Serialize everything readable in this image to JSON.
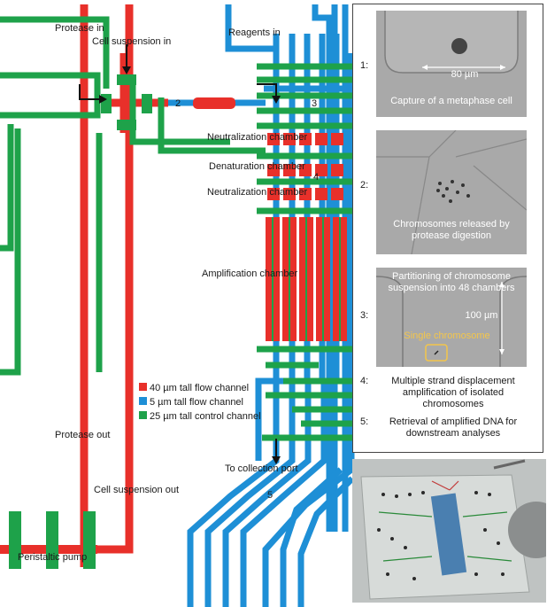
{
  "labels": {
    "protease_in": "Protease in",
    "cell_suspension_in": "Cell suspension in",
    "reagents_in": "Reagents in",
    "neutralization_1": "Neutralization chamber",
    "denaturation": "Denaturation chamber",
    "neutralization_2": "Neutralization chamber",
    "amplification": "Amplification chamber",
    "protease_out": "Protease out",
    "cell_suspension_out": "Cell suspension out",
    "to_collection_port": "To collection port",
    "peristaltic_pump": "Peristaltic pump",
    "marker_2": "2",
    "marker_3": "3",
    "marker_4": "4",
    "marker_5": "5"
  },
  "legend": [
    {
      "color": "#e8302a",
      "text": "40 µm tall flow channel"
    },
    {
      "color": "#1e8fd6",
      "text": "5 µm tall flow channel"
    },
    {
      "color": "#1ea24a",
      "text": "25 µm tall control channel"
    }
  ],
  "colors": {
    "flow40": "#e8302a",
    "flow5": "#1e8fd6",
    "control": "#1ea24a"
  },
  "steps": [
    {
      "num": "1:",
      "caption": "Capture of a metaphase cell",
      "scale": "80 µm"
    },
    {
      "num": "2:",
      "caption": "Chromosomes released by protease digestion"
    },
    {
      "num": "3:",
      "caption": "Partitioning of chromosome suspension into 48 chambers",
      "scale": "100 µm",
      "highlight": "Single chromosome"
    },
    {
      "num": "4:",
      "text": "Multiple strand displacement amplification of isolated chromosomes"
    },
    {
      "num": "5:",
      "text": "Retrieval of amplified DNA for downstream analyses"
    }
  ]
}
